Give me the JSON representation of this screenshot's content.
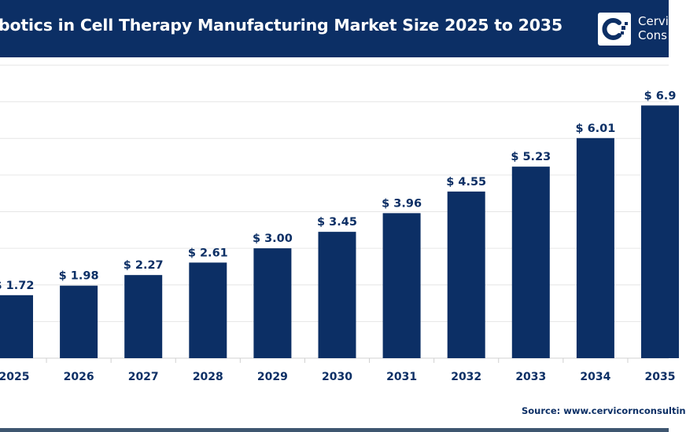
{
  "header": {
    "title": "botics in Cell Therapy Manufacturing Market Size 2025 to 2035",
    "logo_text_line1": "Cervi",
    "logo_text_line2": "Cons",
    "background_color": "#0c2f65"
  },
  "footer": {
    "source": "Source: www.cervicornconsultin"
  },
  "chart_data": {
    "type": "bar",
    "categories": [
      "2025",
      "2026",
      "2027",
      "2028",
      "2029",
      "2030",
      "2031",
      "2032",
      "2033",
      "2034",
      "2035"
    ],
    "values": [
      1.72,
      1.98,
      2.27,
      2.61,
      3.0,
      3.45,
      3.96,
      4.55,
      5.23,
      6.01,
      6.9
    ],
    "data_labels": [
      "$ 1.72",
      "$ 1.98",
      "$ 2.27",
      "$ 2.61",
      "$ 3.00",
      "$ 3.45",
      "$ 3.96",
      "$ 4.55",
      "$ 5.23",
      "$ 6.01",
      "$ 6.9"
    ],
    "ylim": [
      0,
      8
    ],
    "grid": true,
    "bar_color": "#0c2f65",
    "title": "",
    "xlabel": "",
    "ylabel": ""
  }
}
